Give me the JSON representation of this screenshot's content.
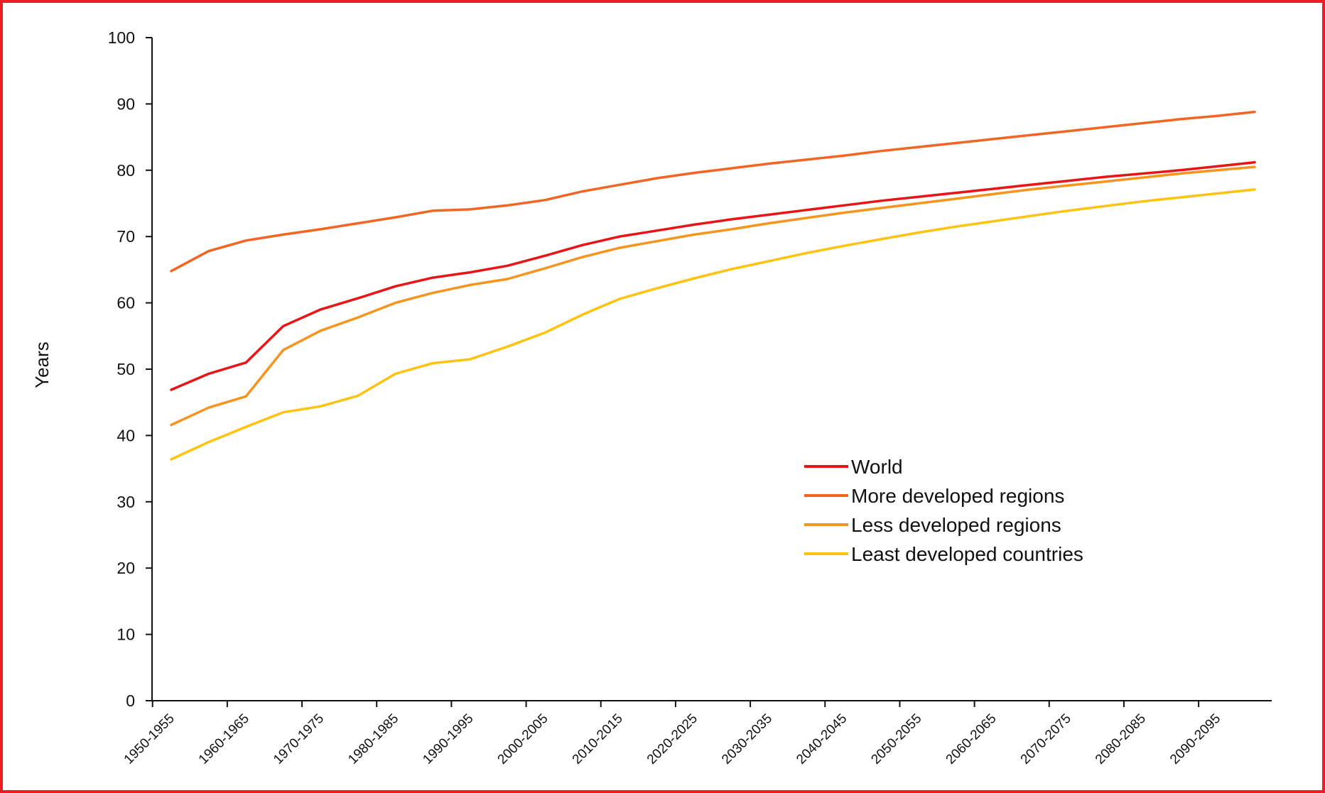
{
  "chart_data": {
    "type": "line",
    "ylabel": "Years",
    "ylim": [
      0,
      100
    ],
    "yticks": [
      0,
      10,
      20,
      30,
      40,
      50,
      60,
      70,
      80,
      90,
      100
    ],
    "x_tick_labels": [
      "1950-1955",
      "1960-1965",
      "1970-1975",
      "1980-1985",
      "1990-1995",
      "2000-2005",
      "2010-2015",
      "2020-2025",
      "2030-2035",
      "2040-2045",
      "2050-2055",
      "2060-2065",
      "2070-2075",
      "2080-2085",
      "2090-2095"
    ],
    "categories": [
      "1950-1955",
      "1955-1960",
      "1960-1965",
      "1965-1970",
      "1970-1975",
      "1975-1980",
      "1980-1985",
      "1985-1990",
      "1990-1995",
      "1995-2000",
      "2000-2005",
      "2005-2010",
      "2010-2015",
      "2015-2020",
      "2020-2025",
      "2025-2030",
      "2030-2035",
      "2035-2040",
      "2040-2045",
      "2045-2050",
      "2050-2055",
      "2055-2060",
      "2060-2065",
      "2065-2070",
      "2070-2075",
      "2075-2080",
      "2080-2085",
      "2085-2090",
      "2090-2095",
      "2095-2100"
    ],
    "legend_position": "center-right",
    "grid": false,
    "series": [
      {
        "name": "World",
        "color": "#e81416",
        "values": [
          46.9,
          49.3,
          51.0,
          56.5,
          59.0,
          60.7,
          62.5,
          63.8,
          64.6,
          65.6,
          67.1,
          68.7,
          70.0,
          70.9,
          71.8,
          72.6,
          73.3,
          74.0,
          74.7,
          75.4,
          76.0,
          76.6,
          77.2,
          77.8,
          78.4,
          79.0,
          79.5,
          80.0,
          80.6,
          81.2
        ]
      },
      {
        "name": "More developed regions",
        "color": "#f26522",
        "values": [
          64.8,
          67.8,
          69.4,
          70.3,
          71.1,
          72.0,
          72.9,
          73.9,
          74.1,
          74.7,
          75.5,
          76.8,
          77.8,
          78.8,
          79.6,
          80.3,
          81.0,
          81.6,
          82.2,
          82.9,
          83.5,
          84.1,
          84.7,
          85.3,
          85.9,
          86.5,
          87.1,
          87.7,
          88.2,
          88.8
        ]
      },
      {
        "name": "Less developed regions",
        "color": "#f7941d",
        "values": [
          41.6,
          44.2,
          45.9,
          52.9,
          55.8,
          57.8,
          60.0,
          61.5,
          62.7,
          63.6,
          65.2,
          66.9,
          68.3,
          69.3,
          70.3,
          71.1,
          72.0,
          72.8,
          73.6,
          74.3,
          75.0,
          75.7,
          76.4,
          77.1,
          77.7,
          78.3,
          78.9,
          79.5,
          80.0,
          80.5
        ]
      },
      {
        "name": "Least developed countries",
        "color": "#ffc20e",
        "values": [
          36.4,
          39.0,
          41.3,
          43.5,
          44.4,
          46.0,
          49.3,
          50.9,
          51.5,
          53.4,
          55.5,
          58.2,
          60.6,
          62.2,
          63.7,
          65.1,
          66.3,
          67.5,
          68.6,
          69.6,
          70.6,
          71.5,
          72.3,
          73.1,
          73.9,
          74.6,
          75.3,
          75.9,
          76.5,
          77.1
        ]
      }
    ]
  }
}
